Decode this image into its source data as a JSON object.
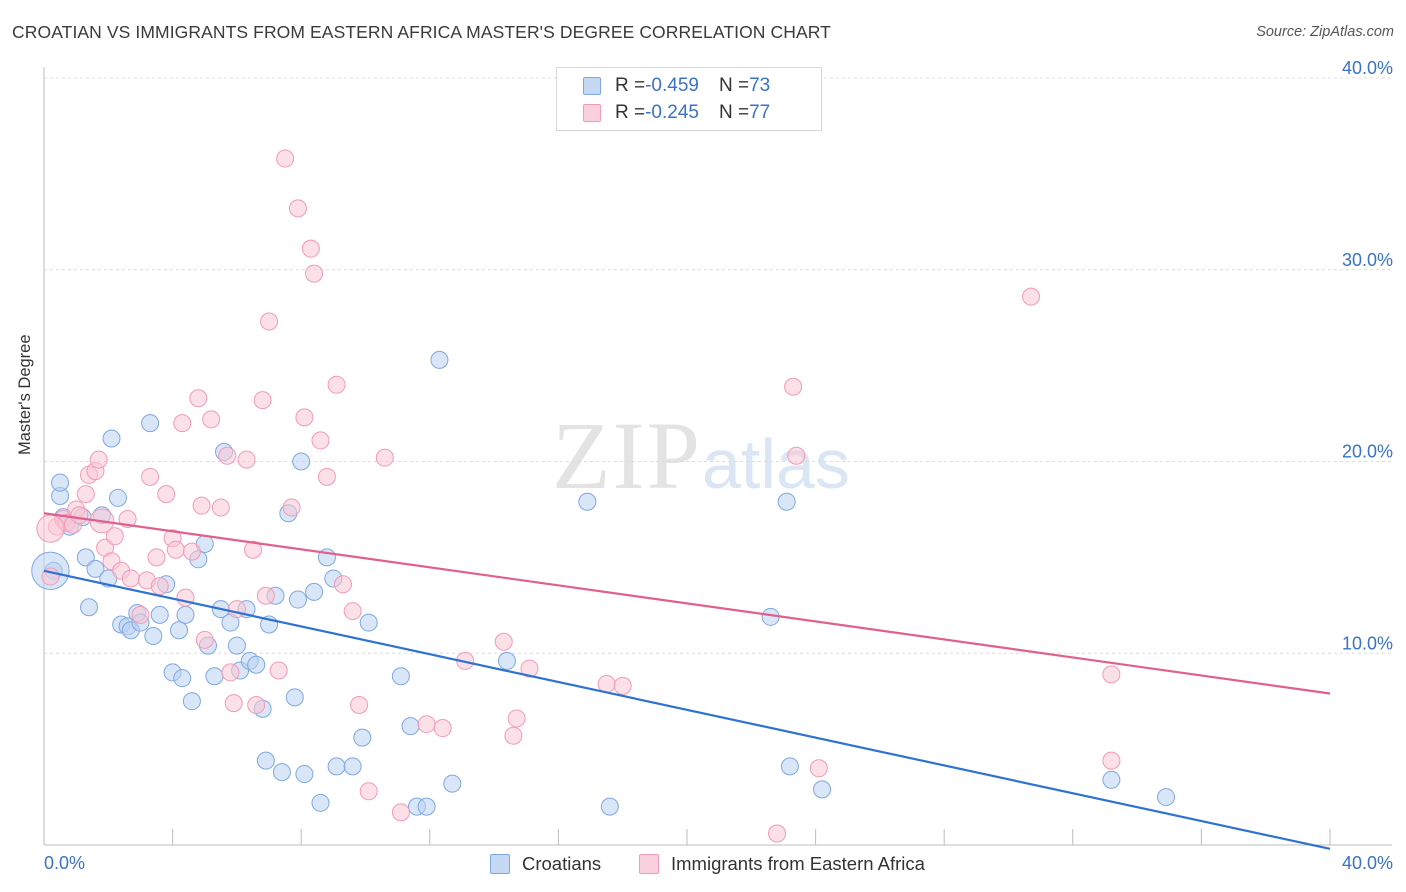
{
  "title": "CROATIAN VS IMMIGRANTS FROM EASTERN AFRICA MASTER'S DEGREE CORRELATION CHART",
  "source": "Source: ZipAtlas.com",
  "watermark": {
    "zip": "ZIP",
    "atlas": "atlas"
  },
  "legend_top": [
    {
      "r_label": "R = ",
      "r_value": "-0.459",
      "n_label": "N = ",
      "n_value": "73",
      "color": "#a9c6ee"
    },
    {
      "r_label": "R = ",
      "r_value": "-0.245",
      "n_label": "N = ",
      "n_value": "77",
      "color": "#f7b9cc"
    }
  ],
  "chart_data": {
    "type": "scatter",
    "title": "CROATIAN VS IMMIGRANTS FROM EASTERN AFRICA MASTER'S DEGREE CORRELATION CHART",
    "xlabel": "",
    "ylabel": "Master's Degree",
    "xlim": [
      0,
      40
    ],
    "ylim": [
      0,
      40
    ],
    "x_tick_labels": [
      "0.0%",
      "40.0%"
    ],
    "y_ticks": [
      10,
      20,
      30,
      40
    ],
    "y_tick_labels": [
      "10.0%",
      "20.0%",
      "30.0%",
      "40.0%"
    ],
    "grid": true,
    "series": [
      {
        "name": "Croatians",
        "color": "#7fa8e0",
        "fill": "#b9d1f2",
        "trend": {
          "x": [
            0,
            40
          ],
          "y": [
            14.3,
            -0.2
          ],
          "color": "#2f72d0"
        },
        "points": [
          [
            0.3,
            14.3,
            1
          ],
          [
            0.5,
            18.2,
            1
          ],
          [
            0.5,
            18.9,
            1
          ],
          [
            0.6,
            17.1,
            1
          ],
          [
            0.8,
            16.6,
            1
          ],
          [
            1.2,
            17.1,
            1
          ],
          [
            1.3,
            15.0,
            1
          ],
          [
            1.4,
            12.4,
            1
          ],
          [
            1.6,
            14.4,
            1
          ],
          [
            1.8,
            17.2,
            1
          ],
          [
            2.0,
            13.9,
            1
          ],
          [
            2.1,
            21.2,
            1
          ],
          [
            2.3,
            18.1,
            1
          ],
          [
            2.4,
            11.5,
            1
          ],
          [
            2.6,
            11.4,
            1
          ],
          [
            2.7,
            11.2,
            1
          ],
          [
            2.9,
            12.1,
            1
          ],
          [
            3.0,
            11.6,
            1
          ],
          [
            3.3,
            22.0,
            1
          ],
          [
            3.4,
            10.9,
            1
          ],
          [
            3.6,
            12.0,
            1
          ],
          [
            3.8,
            13.6,
            1
          ],
          [
            4.0,
            9.0,
            1
          ],
          [
            4.2,
            11.2,
            1
          ],
          [
            4.3,
            8.7,
            1
          ],
          [
            4.4,
            12.0,
            1
          ],
          [
            4.6,
            7.5,
            1
          ],
          [
            4.8,
            14.9,
            1
          ],
          [
            5.0,
            15.7,
            1
          ],
          [
            5.1,
            10.4,
            1
          ],
          [
            5.3,
            8.8,
            1
          ],
          [
            5.5,
            12.3,
            1
          ],
          [
            5.6,
            20.5,
            1
          ],
          [
            5.8,
            11.6,
            1
          ],
          [
            6.0,
            10.4,
            1
          ],
          [
            6.1,
            9.1,
            1
          ],
          [
            6.3,
            12.3,
            1
          ],
          [
            6.4,
            9.6,
            1
          ],
          [
            6.6,
            9.4,
            1
          ],
          [
            6.8,
            7.1,
            1
          ],
          [
            6.9,
            4.4,
            1
          ],
          [
            7.0,
            11.5,
            1
          ],
          [
            7.2,
            13.0,
            1
          ],
          [
            7.4,
            3.8,
            1
          ],
          [
            7.6,
            17.3,
            1
          ],
          [
            7.8,
            7.7,
            1
          ],
          [
            7.9,
            12.8,
            1
          ],
          [
            8.0,
            20.0,
            1
          ],
          [
            8.1,
            3.7,
            1
          ],
          [
            8.4,
            13.2,
            1
          ],
          [
            8.6,
            2.2,
            1
          ],
          [
            8.8,
            15.0,
            1
          ],
          [
            9.0,
            13.9,
            1
          ],
          [
            9.1,
            4.1,
            1
          ],
          [
            9.6,
            4.1,
            1
          ],
          [
            9.9,
            5.6,
            1
          ],
          [
            10.1,
            11.6,
            1
          ],
          [
            11.1,
            8.8,
            1
          ],
          [
            11.4,
            6.2,
            1
          ],
          [
            11.6,
            2.0,
            1
          ],
          [
            11.9,
            2.0,
            1
          ],
          [
            12.3,
            25.3,
            1
          ],
          [
            12.7,
            3.2,
            1
          ],
          [
            14.4,
            9.6,
            1
          ],
          [
            16.9,
            17.9,
            1
          ],
          [
            17.6,
            2.0,
            1
          ],
          [
            22.6,
            11.9,
            1
          ],
          [
            23.1,
            17.9,
            1
          ],
          [
            23.2,
            4.1,
            1
          ],
          [
            24.2,
            2.9,
            1
          ],
          [
            33.2,
            3.4,
            1
          ],
          [
            34.9,
            2.5,
            1
          ],
          [
            0.2,
            14.3,
            2.2
          ]
        ]
      },
      {
        "name": "Immigrants from Eastern Africa",
        "color": "#f29bb7",
        "fill": "#fac6d6",
        "trend": {
          "x": [
            0,
            40
          ],
          "y": [
            17.3,
            7.9
          ],
          "color": "#e0608c"
        },
        "points": [
          [
            0.2,
            14.0,
            1
          ],
          [
            0.4,
            16.6,
            1
          ],
          [
            0.6,
            17.0,
            1
          ],
          [
            0.7,
            16.8,
            1
          ],
          [
            0.9,
            16.7,
            1
          ],
          [
            1.0,
            17.5,
            1
          ],
          [
            1.1,
            17.2,
            1
          ],
          [
            1.3,
            18.3,
            1
          ],
          [
            1.4,
            19.3,
            1
          ],
          [
            1.6,
            19.5,
            1
          ],
          [
            1.7,
            20.1,
            1
          ],
          [
            1.9,
            15.5,
            1
          ],
          [
            2.1,
            14.8,
            1
          ],
          [
            2.2,
            16.1,
            1
          ],
          [
            2.4,
            14.3,
            1
          ],
          [
            2.6,
            17.0,
            1
          ],
          [
            2.7,
            13.9,
            1
          ],
          [
            3.0,
            12.0,
            1
          ],
          [
            3.2,
            13.8,
            1
          ],
          [
            3.3,
            19.2,
            1
          ],
          [
            3.5,
            15.0,
            1
          ],
          [
            3.6,
            13.5,
            1
          ],
          [
            3.8,
            18.3,
            1
          ],
          [
            4.0,
            16.0,
            1
          ],
          [
            4.1,
            15.4,
            1
          ],
          [
            4.3,
            22.0,
            1
          ],
          [
            4.4,
            12.9,
            1
          ],
          [
            4.6,
            15.3,
            1
          ],
          [
            4.8,
            23.3,
            1
          ],
          [
            4.9,
            17.7,
            1
          ],
          [
            5.0,
            10.7,
            1
          ],
          [
            5.2,
            22.2,
            1
          ],
          [
            5.5,
            17.6,
            1
          ],
          [
            5.7,
            20.3,
            1
          ],
          [
            5.8,
            9.0,
            1
          ],
          [
            5.9,
            7.4,
            1
          ],
          [
            6.0,
            12.3,
            1
          ],
          [
            6.3,
            20.1,
            1
          ],
          [
            6.5,
            15.4,
            1
          ],
          [
            6.6,
            7.3,
            1
          ],
          [
            6.8,
            23.2,
            1
          ],
          [
            6.9,
            13.0,
            1
          ],
          [
            7.0,
            27.3,
            1
          ],
          [
            7.3,
            9.1,
            1
          ],
          [
            7.5,
            35.8,
            1
          ],
          [
            7.7,
            17.6,
            1
          ],
          [
            7.9,
            33.2,
            1
          ],
          [
            8.1,
            22.3,
            1
          ],
          [
            8.3,
            31.1,
            1
          ],
          [
            8.4,
            29.8,
            1
          ],
          [
            8.6,
            21.1,
            1
          ],
          [
            8.8,
            19.2,
            1
          ],
          [
            9.1,
            24.0,
            1
          ],
          [
            9.3,
            13.6,
            1
          ],
          [
            9.6,
            12.2,
            1
          ],
          [
            9.8,
            7.3,
            1
          ],
          [
            10.1,
            2.8,
            1
          ],
          [
            10.6,
            20.2,
            1
          ],
          [
            11.1,
            1.7,
            1
          ],
          [
            11.9,
            6.3,
            1
          ],
          [
            12.4,
            6.1,
            1
          ],
          [
            13.1,
            9.6,
            1
          ],
          [
            14.3,
            10.6,
            1
          ],
          [
            14.6,
            5.7,
            1
          ],
          [
            14.7,
            6.6,
            1
          ],
          [
            15.1,
            9.2,
            1
          ],
          [
            17.5,
            8.4,
            1
          ],
          [
            18.0,
            8.3,
            1
          ],
          [
            22.8,
            0.6,
            1
          ],
          [
            23.3,
            23.9,
            1
          ],
          [
            23.4,
            20.3,
            1
          ],
          [
            24.1,
            4.0,
            1
          ],
          [
            30.7,
            28.6,
            1
          ],
          [
            33.2,
            4.4,
            1
          ],
          [
            33.2,
            8.9,
            1
          ],
          [
            1.8,
            16.9,
            1.4
          ],
          [
            0.2,
            16.5,
            1.6
          ]
        ]
      }
    ]
  },
  "bottom_legend": [
    {
      "label": "Croatians",
      "color": "#b9d1f2",
      "border": "#7fa8e0"
    },
    {
      "label": "Immigrants from Eastern Africa",
      "color": "#fac6d6",
      "border": "#f29bb7"
    }
  ]
}
